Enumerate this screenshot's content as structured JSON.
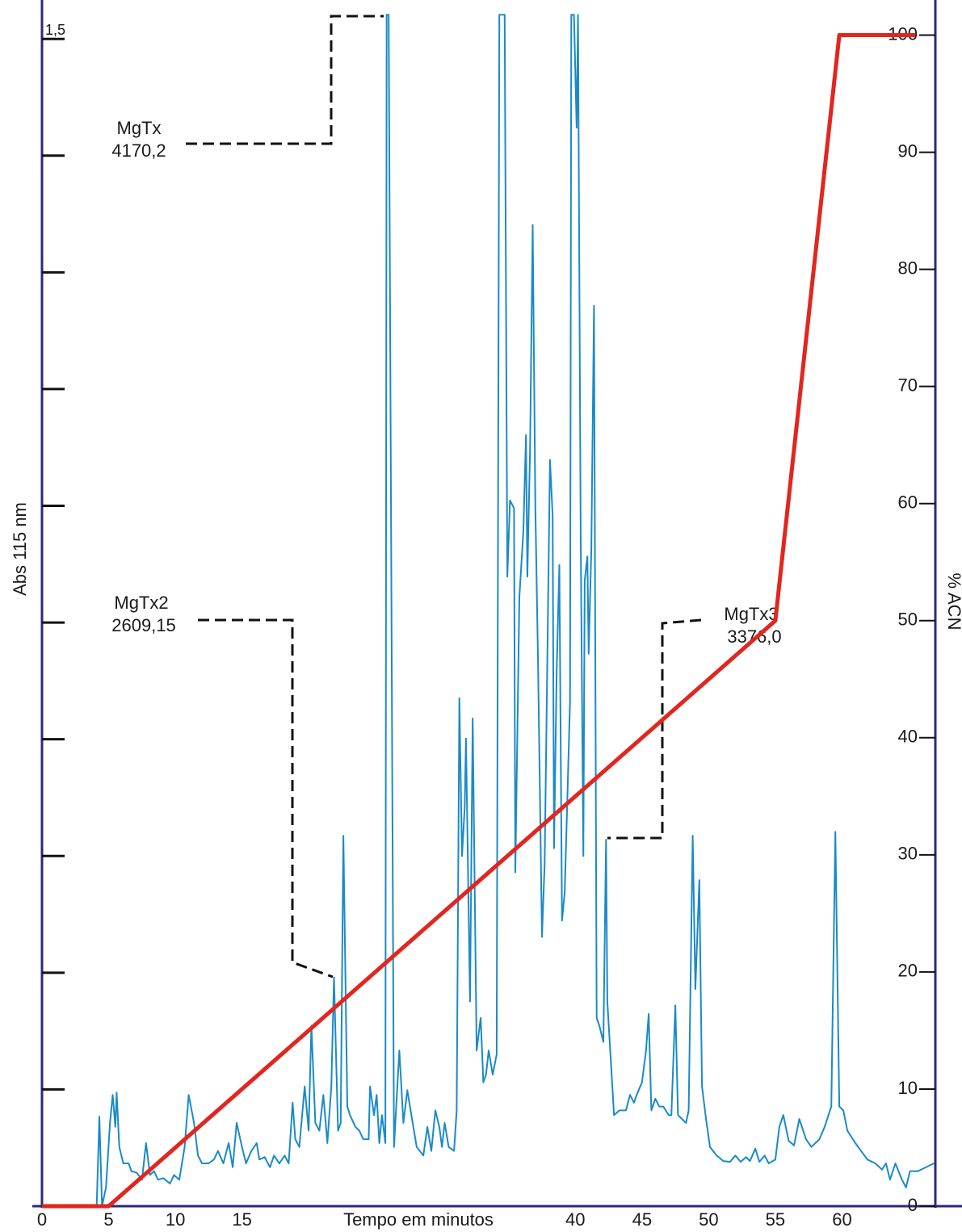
{
  "chart_data": {
    "type": "line",
    "xlabel": "Tempo em minutos",
    "ylabel": "Abs 115 nm",
    "y2label": "% ACN",
    "xlim": [
      0,
      67
    ],
    "xticks": [
      0,
      5,
      10,
      15,
      40,
      45,
      50,
      55,
      60
    ],
    "ylim": [
      0,
      1.55
    ],
    "yticks": [
      {
        "value": 1.5,
        "label": "1,5"
      }
    ],
    "yminor": [
      0.15,
      0.3,
      0.45,
      0.6,
      0.75,
      0.9,
      1.05,
      1.2,
      1.35
    ],
    "y2lim": [
      0,
      103
    ],
    "y2ticks": [
      0,
      10,
      20,
      30,
      40,
      50,
      60,
      70,
      80,
      90,
      100
    ],
    "annotations": [
      {
        "label": "MgTx",
        "mass": "4170,2"
      },
      {
        "label": "MgTx2",
        "mass": "2609,15"
      },
      {
        "label": "MgTx3",
        "mass": "3376,0"
      }
    ],
    "series": [
      {
        "color": "#1b8ac8",
        "x": [
          4.1,
          4.3,
          4.5,
          4.8,
          5.1,
          5.3,
          5.5,
          5.6,
          5.8,
          6.1,
          6.5,
          6.7,
          7.1,
          7.5,
          7.8,
          8.1,
          8.4,
          8.7,
          9.1,
          9.6,
          9.9,
          10.3,
          10.7,
          11.0,
          11.4,
          11.7,
          12.0,
          12.5,
          12.9,
          13.2,
          13.6,
          14.0,
          14.3,
          14.6,
          15.0,
          15.3,
          15.7,
          16.1,
          16.3,
          16.7,
          17.1,
          17.4,
          17.8,
          18.2,
          18.5,
          18.8,
          19.0,
          19.3,
          19.7,
          20.0,
          20.2,
          20.5,
          20.8,
          21.1,
          21.4,
          21.7,
          21.9,
          22.2,
          22.4,
          22.6,
          22.9,
          23.1,
          23.5,
          23.8,
          24.1,
          24.5,
          24.6,
          24.9,
          25.1,
          25.3,
          25.5,
          25.75,
          25.85,
          26.0,
          26.4,
          26.8,
          27.1,
          27.4,
          27.8,
          28.1,
          28.6,
          28.9,
          29.2,
          29.5,
          29.8,
          30.0,
          30.2,
          30.5,
          30.9,
          31.1,
          31.3,
          31.5,
          31.7,
          31.8,
          32.1,
          32.3,
          32.6,
          32.9,
          33.1,
          33.3,
          33.5,
          33.8,
          34.1,
          34.3,
          34.7,
          34.9,
          35.1,
          35.4,
          35.5,
          35.8,
          36.1,
          36.3,
          36.4,
          36.6,
          36.8,
          37.0,
          37.2,
          37.5,
          37.7,
          38.1,
          38.3,
          38.4,
          38.6,
          38.8,
          39.0,
          39.2,
          39.4,
          39.6,
          39.7,
          39.9,
          40.1,
          40.2,
          40.4,
          40.6,
          40.7,
          40.9,
          41.0,
          41.2,
          41.4,
          41.6,
          41.8,
          42.1,
          42.3,
          42.4,
          42.9,
          43.3,
          43.8,
          44.1,
          44.4,
          44.6,
          45.0,
          45.3,
          45.5,
          45.7,
          46.0,
          46.3,
          46.6,
          47.0,
          47.2,
          47.5,
          47.7,
          48.0,
          48.3,
          48.5,
          48.8,
          49.0,
          49.3,
          49.5,
          49.8,
          50.1,
          50.6,
          51.1,
          51.6,
          52.0,
          52.4,
          52.8,
          53.1,
          53.5,
          53.8,
          54.2,
          54.5,
          55.0,
          55.3,
          55.6,
          56.0,
          56.4,
          56.8,
          57.3,
          57.7,
          58.3,
          58.7,
          59.2,
          59.5,
          59.8,
          60.1,
          60.4,
          61.0,
          61.9,
          62.5,
          63.0,
          63.3,
          63.6,
          64.0,
          64.5,
          64.8,
          65.1,
          65.7,
          66.9
        ],
        "values": [
          0,
          0.115,
          0,
          0.024,
          0.107,
          0.143,
          0.102,
          0.146,
          0.076,
          0.055,
          0.055,
          0.045,
          0.043,
          0.034,
          0.081,
          0.04,
          0.045,
          0.034,
          0.036,
          0.029,
          0.04,
          0.034,
          0.076,
          0.143,
          0.107,
          0.065,
          0.055,
          0.055,
          0.06,
          0.071,
          0.055,
          0.081,
          0.05,
          0.107,
          0.076,
          0.055,
          0.071,
          0.081,
          0.06,
          0.063,
          0.05,
          0.065,
          0.055,
          0.065,
          0.055,
          0.133,
          0.086,
          0.076,
          0.154,
          0.097,
          0.232,
          0.107,
          0.097,
          0.143,
          0.081,
          0.154,
          0.294,
          0.097,
          0.107,
          0.476,
          0.128,
          0.117,
          0.102,
          0.097,
          0.086,
          0.086,
          0.154,
          0.117,
          0.143,
          0.081,
          0.117,
          0.081,
          1.531,
          1.531,
          0.076,
          0.2,
          0.107,
          0.149,
          0.107,
          0.076,
          0.065,
          0.102,
          0.071,
          0.123,
          0.102,
          0.076,
          0.107,
          0.076,
          0.071,
          0.123,
          0.653,
          0.45,
          0.512,
          0.601,
          0.263,
          0.627,
          0.2,
          0.242,
          0.159,
          0.169,
          0.2,
          0.169,
          0.195,
          1.531,
          1.531,
          0.809,
          0.907,
          0.897,
          0.429,
          0.783,
          0.866,
          0.991,
          0.809,
          0.97,
          1.261,
          0.897,
          0.7,
          0.346,
          0.44,
          0.959,
          0.887,
          0.46,
          0.689,
          0.824,
          0.367,
          0.403,
          0.523,
          0.648,
          1.531,
          1.531,
          1.386,
          1.531,
          0.866,
          0.45,
          0.804,
          0.835,
          0.71,
          0.845,
          1.157,
          0.242,
          0.232,
          0.211,
          0.471,
          0.263,
          0.117,
          0.123,
          0.123,
          0.143,
          0.133,
          0.143,
          0.159,
          0.2,
          0.247,
          0.123,
          0.138,
          0.128,
          0.128,
          0.117,
          0.117,
          0.258,
          0.117,
          0.112,
          0.107,
          0.123,
          0.476,
          0.279,
          0.419,
          0.154,
          0.112,
          0.076,
          0.065,
          0.058,
          0.057,
          0.065,
          0.057,
          0.063,
          0.058,
          0.074,
          0.057,
          0.065,
          0.055,
          0.06,
          0.102,
          0.117,
          0.084,
          0.078,
          0.112,
          0.086,
          0.076,
          0.086,
          0.102,
          0.128,
          0.481,
          0.128,
          0.123,
          0.097,
          0.081,
          0.06,
          0.055,
          0.047,
          0.055,
          0.034,
          0.055,
          0.034,
          0.024,
          0.045,
          0.045,
          0.055
        ]
      },
      {
        "color": "#e2261f",
        "axis": "y2",
        "x": [
          0,
          5,
          55,
          59.8,
          65.5
        ],
        "values": [
          0,
          0,
          50,
          100,
          100
        ]
      }
    ]
  }
}
